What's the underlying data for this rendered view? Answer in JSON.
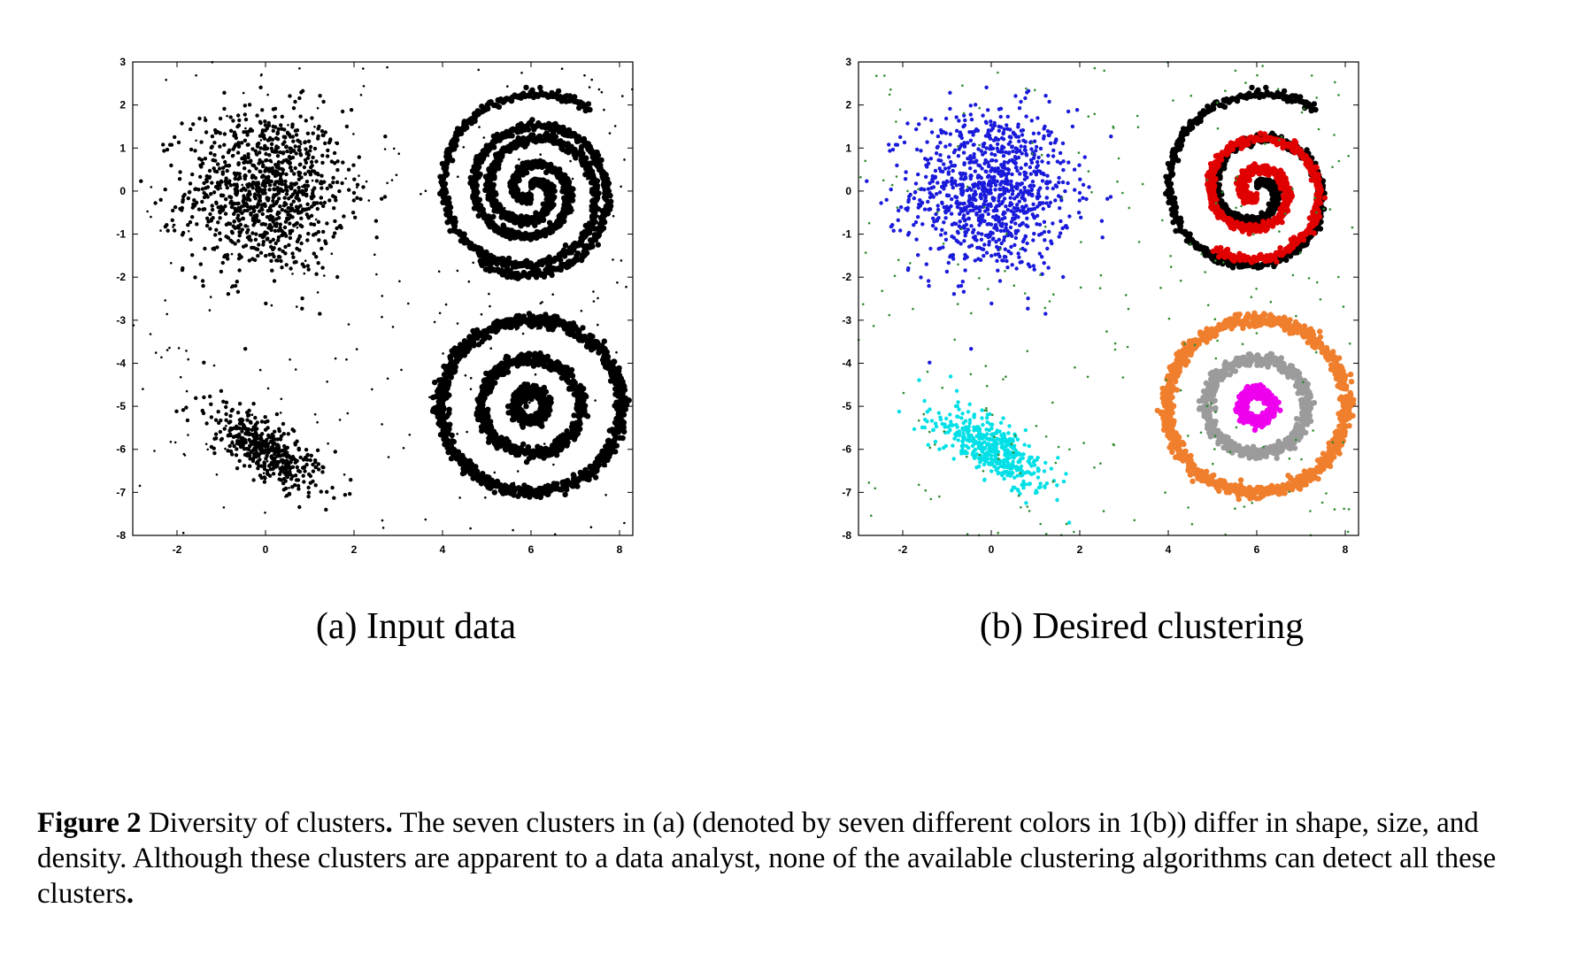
{
  "subcaptions": {
    "a": "(a) Input data",
    "b": "(b) Desired clustering"
  },
  "caption": {
    "label": "Figure 2",
    "title": "Diversity of clusters",
    "text": "The seven clusters in (a) (denoted by seven different colors in 1(b)) differ in shape, size, and density. Although these clusters are apparent to a data analyst, none of the available clustering algorithms can detect all these clusters",
    "end": "."
  },
  "chart_data": [
    {
      "type": "scatter",
      "title": "",
      "xlabel": "",
      "ylabel": "",
      "xlim": [
        -3,
        8.3
      ],
      "ylim": [
        -8,
        3
      ],
      "xticks": [
        -2,
        0,
        2,
        4,
        6,
        8
      ],
      "yticks": [
        3,
        2,
        1,
        0,
        -1,
        -2,
        -3,
        -4,
        -5,
        -6,
        -7,
        -8
      ],
      "grid": false,
      "legend": "none",
      "series": [
        {
          "shape": "gaussian-blob",
          "color": "#000000",
          "center": [
            0,
            0
          ],
          "spread_x": 0.9,
          "spread_y": 0.95,
          "count": 1000
        },
        {
          "shape": "double-spiral",
          "color": "#000000",
          "center": [
            6,
            0
          ],
          "max_radius": 2.2
        },
        {
          "shape": "correlated-blob",
          "color": "#000000",
          "center": [
            0,
            -6
          ],
          "count": 450
        },
        {
          "shape": "ring",
          "color": "#000000",
          "center": [
            6,
            -5
          ],
          "radius": 0.35
        },
        {
          "shape": "ring",
          "color": "#000000",
          "center": [
            6,
            -5
          ],
          "radius": 1.1
        },
        {
          "shape": "ring",
          "color": "#000000",
          "center": [
            6,
            -5
          ],
          "radius": 2.0
        },
        {
          "shape": "uniform-noise",
          "color": "#000000",
          "count": 260
        }
      ]
    },
    {
      "type": "scatter",
      "title": "",
      "xlabel": "",
      "ylabel": "",
      "xlim": [
        -3,
        8.3
      ],
      "ylim": [
        -8,
        3
      ],
      "xticks": [
        -2,
        0,
        2,
        4,
        6,
        8
      ],
      "yticks": [
        3,
        2,
        1,
        0,
        -1,
        -2,
        -3,
        -4,
        -5,
        -6,
        -7,
        -8
      ],
      "grid": false,
      "legend": "none",
      "series": [
        {
          "shape": "gaussian-blob",
          "color": "#1a1adb",
          "center": [
            0,
            0
          ],
          "spread_x": 0.9,
          "spread_y": 0.95,
          "count": 1000
        },
        {
          "shape": "spiral-arm-1",
          "color": "#000000",
          "center": [
            6,
            0
          ],
          "max_radius": 2.2
        },
        {
          "shape": "spiral-arm-2",
          "color": "#e00000",
          "center": [
            6,
            0
          ],
          "max_radius": 1.75
        },
        {
          "shape": "correlated-blob",
          "color": "#00e0e6",
          "center": [
            0,
            -6
          ],
          "count": 450
        },
        {
          "shape": "ring",
          "color": "#ee00ee",
          "center": [
            6,
            -5
          ],
          "radius": 0.35
        },
        {
          "shape": "ring",
          "color": "#9b9b9b",
          "center": [
            6,
            -5
          ],
          "radius": 1.1
        },
        {
          "shape": "ring",
          "color": "#f07f2d",
          "center": [
            6,
            -5
          ],
          "radius": 2.0
        },
        {
          "shape": "uniform-noise",
          "color": "#2e8b2e",
          "count": 260
        }
      ]
    }
  ]
}
